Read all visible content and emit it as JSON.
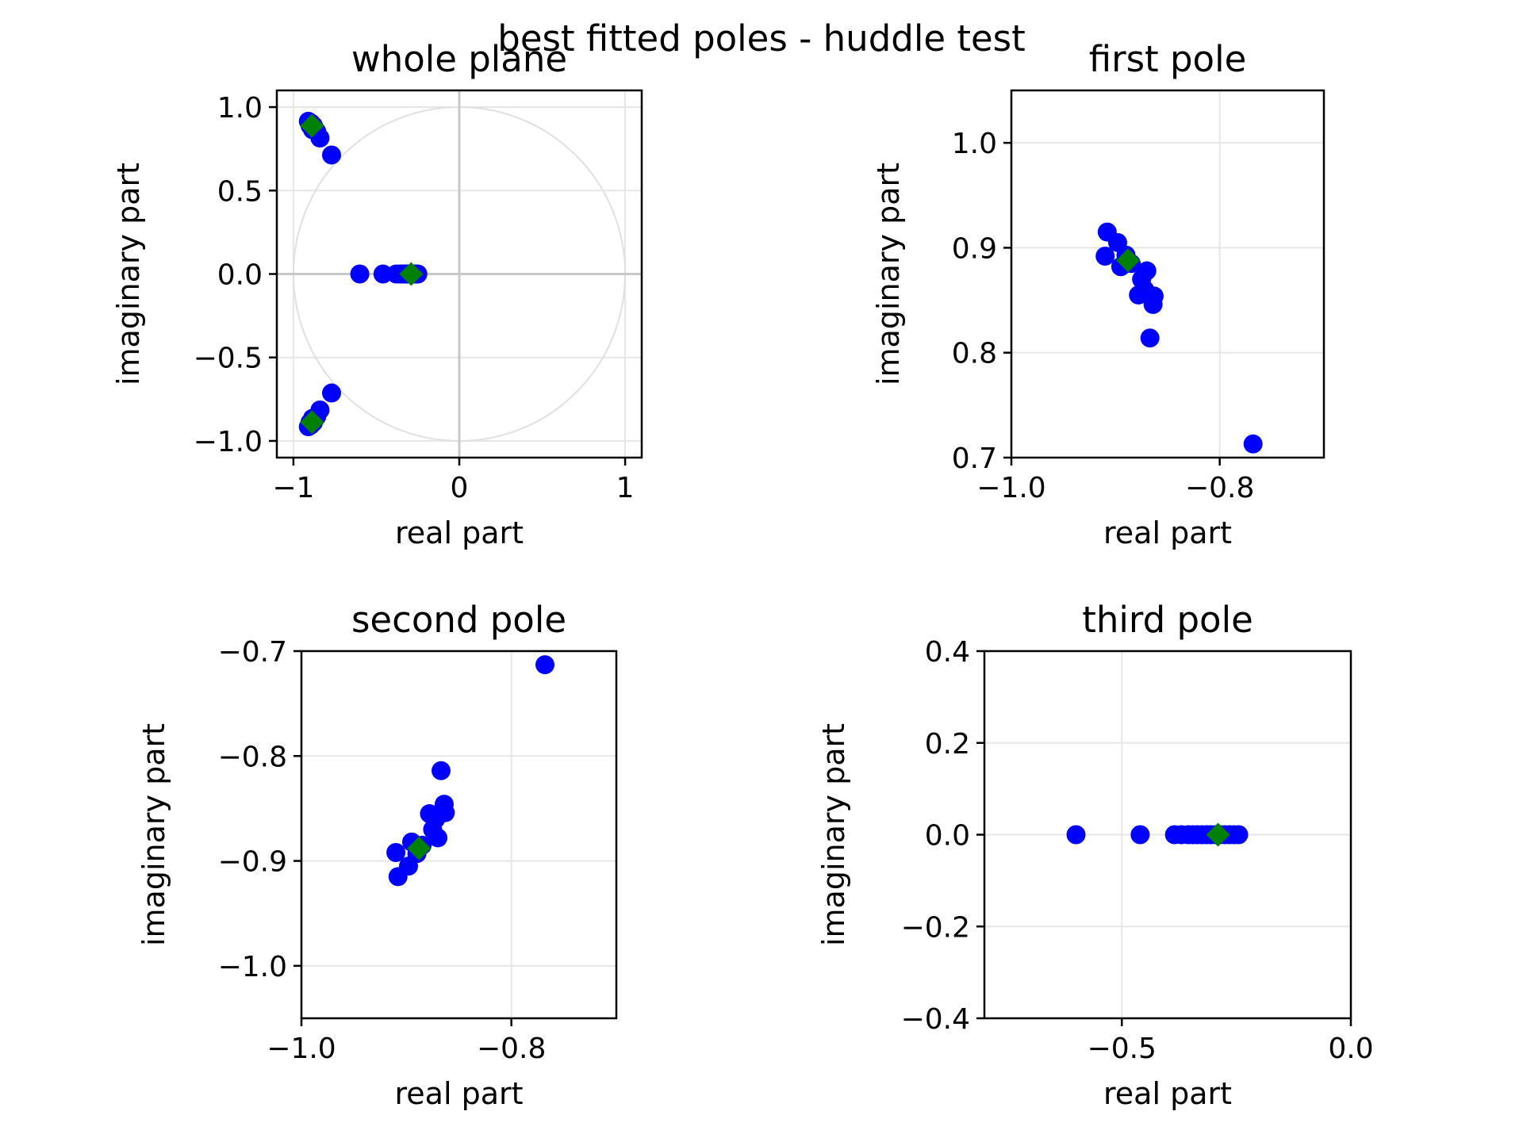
{
  "figure": {
    "suptitle": "best fitted poles - huddle test"
  },
  "chart_data": [
    {
      "id": "whole",
      "type": "scatter",
      "title": "whole plane",
      "xlabel": "real part",
      "ylabel": "imaginary part",
      "xlim": [
        -1.1,
        1.1
      ],
      "ylim": [
        -1.1,
        1.1
      ],
      "xticks": [
        -1,
        0,
        1
      ],
      "xtick_labels": [
        "−1",
        "0",
        "1"
      ],
      "yticks": [
        1.0,
        0.5,
        0.0,
        -0.5,
        -1.0
      ],
      "ytick_labels": [
        "1.0",
        "0.5",
        "0.0",
        "−0.5",
        "−1.0"
      ],
      "grid": true,
      "unit_circle": true,
      "axis_lines": true,
      "series": [
        {
          "marker": "circle",
          "color": "#0000ff",
          "x": [
            -0.91,
            -0.9,
            -0.895,
            -0.89,
            -0.885,
            -0.88,
            -0.87,
            -0.86,
            -0.84,
            -0.77,
            -0.91,
            -0.9,
            -0.895,
            -0.89,
            -0.885,
            -0.88,
            -0.87,
            -0.86,
            -0.84,
            -0.77,
            -0.6,
            -0.46,
            -0.38,
            -0.36,
            -0.34,
            -0.33,
            -0.32,
            -0.31,
            -0.3,
            -0.29,
            -0.28,
            -0.27,
            -0.26,
            -0.25
          ],
          "y": [
            0.915,
            0.89,
            0.905,
            0.88,
            0.865,
            0.89,
            0.86,
            0.855,
            0.815,
            0.713,
            -0.915,
            -0.89,
            -0.905,
            -0.88,
            -0.865,
            -0.89,
            -0.86,
            -0.855,
            -0.815,
            -0.713,
            0,
            0,
            0,
            0,
            0,
            0,
            0,
            0,
            0,
            0,
            0,
            0,
            0,
            0
          ]
        },
        {
          "marker": "diamond",
          "color": "#008000",
          "x": [
            -0.888,
            -0.888,
            -0.29
          ],
          "y": [
            0.888,
            -0.888,
            0
          ]
        }
      ]
    },
    {
      "id": "first",
      "type": "scatter",
      "title": "first pole",
      "xlabel": "real part",
      "ylabel": "imaginary part",
      "xlim": [
        -1.0,
        -0.7
      ],
      "ylim": [
        0.7,
        1.05
      ],
      "xticks": [
        -1.0,
        -0.8
      ],
      "xtick_labels": [
        "−1.0",
        "−0.8"
      ],
      "yticks": [
        1.0,
        0.9,
        0.8,
        0.7
      ],
      "ytick_labels": [
        "1.0",
        "0.9",
        "0.8",
        "0.7"
      ],
      "grid": true,
      "series": [
        {
          "marker": "circle",
          "color": "#0000ff",
          "x": [
            -0.908,
            -0.91,
            -0.898,
            -0.895,
            -0.89,
            -0.885,
            -0.875,
            -0.87,
            -0.878,
            -0.872,
            -0.865,
            -0.863,
            -0.864,
            -0.867,
            -0.768
          ],
          "y": [
            0.915,
            0.892,
            0.905,
            0.882,
            0.893,
            0.885,
            0.87,
            0.878,
            0.855,
            0.86,
            0.852,
            0.854,
            0.846,
            0.814,
            0.713
          ]
        },
        {
          "marker": "diamond",
          "color": "#008000",
          "x": [
            -0.888
          ],
          "y": [
            0.888
          ]
        }
      ]
    },
    {
      "id": "second",
      "type": "scatter",
      "title": "second pole",
      "xlabel": "real part",
      "ylabel": "imaginary part",
      "xlim": [
        -1.0,
        -0.7
      ],
      "ylim": [
        -1.05,
        -0.7
      ],
      "xticks": [
        -1.0,
        -0.8
      ],
      "xtick_labels": [
        "−1.0",
        "−0.8"
      ],
      "yticks": [
        -0.7,
        -0.8,
        -0.9,
        -1.0
      ],
      "ytick_labels": [
        "−0.7",
        "−0.8",
        "−0.9",
        "−1.0"
      ],
      "grid": true,
      "series": [
        {
          "marker": "circle",
          "color": "#0000ff",
          "x": [
            -0.908,
            -0.91,
            -0.898,
            -0.895,
            -0.89,
            -0.885,
            -0.875,
            -0.87,
            -0.878,
            -0.872,
            -0.865,
            -0.863,
            -0.864,
            -0.867,
            -0.768
          ],
          "y": [
            -0.915,
            -0.892,
            -0.905,
            -0.882,
            -0.893,
            -0.885,
            -0.87,
            -0.878,
            -0.855,
            -0.86,
            -0.852,
            -0.854,
            -0.846,
            -0.814,
            -0.713
          ]
        },
        {
          "marker": "diamond",
          "color": "#008000",
          "x": [
            -0.888
          ],
          "y": [
            -0.888
          ]
        }
      ]
    },
    {
      "id": "third",
      "type": "scatter",
      "title": "third pole",
      "xlabel": "real part",
      "ylabel": "imaginary part",
      "xlim": [
        -0.8,
        0.0
      ],
      "ylim": [
        -0.4,
        0.4
      ],
      "xticks": [
        -0.5,
        0.0
      ],
      "xtick_labels": [
        "−0.5",
        "0.0"
      ],
      "yticks": [
        0.4,
        0.2,
        0.0,
        -0.2,
        -0.4
      ],
      "ytick_labels": [
        "0.4",
        "0.2",
        "0.0",
        "−0.2",
        "−0.4"
      ],
      "grid": true,
      "series": [
        {
          "marker": "circle",
          "color": "#0000ff",
          "x": [
            -0.6,
            -0.46,
            -0.385,
            -0.37,
            -0.355,
            -0.345,
            -0.335,
            -0.325,
            -0.315,
            -0.305,
            -0.295,
            -0.285,
            -0.275,
            -0.265,
            -0.255,
            -0.245
          ],
          "y": [
            0,
            0,
            0,
            0,
            0,
            0,
            0,
            0,
            0,
            0,
            0,
            0,
            0,
            0,
            0,
            0
          ]
        },
        {
          "marker": "diamond",
          "color": "#008000",
          "x": [
            -0.29
          ],
          "y": [
            0
          ]
        }
      ]
    }
  ]
}
